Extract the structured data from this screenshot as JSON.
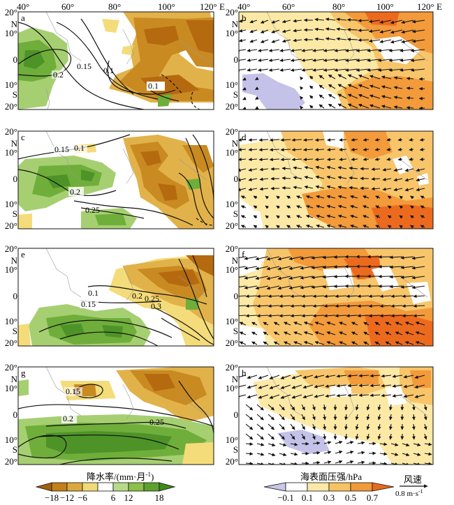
{
  "top_axis": {
    "lon_labels_left": [
      "40°",
      "60°",
      "80°",
      "100°",
      "120° E"
    ],
    "lon_labels_right": [
      "40°",
      "60°",
      "80°",
      "100°",
      "120° E"
    ]
  },
  "lat_labels": {
    "top": "20°",
    "n10": "10°",
    "N": "N",
    "zero": "0",
    "s10": "10°",
    "S": "S",
    "bottom": "20°"
  },
  "panels": [
    {
      "id": "a",
      "contours": [
        {
          "text": "0.2"
        },
        {
          "text": "0.15"
        },
        {
          "text": "0.1"
        },
        {
          "text": "0.1"
        }
      ]
    },
    {
      "id": "b"
    },
    {
      "id": "c",
      "contours": [
        {
          "text": "0.15"
        },
        {
          "text": "0.1"
        },
        {
          "text": "0.2"
        },
        {
          "text": "0.25"
        }
      ]
    },
    {
      "id": "d"
    },
    {
      "id": "e",
      "contours": [
        {
          "text": "0.1"
        },
        {
          "text": "0.15"
        },
        {
          "text": "0.2"
        },
        {
          "text": "0.25"
        },
        {
          "text": "0.3"
        }
      ]
    },
    {
      "id": "f"
    },
    {
      "id": "g",
      "contours": [
        {
          "text": "0.15"
        },
        {
          "text": "0.2"
        },
        {
          "text": "0.25"
        }
      ]
    },
    {
      "id": "h"
    }
  ],
  "legend_left": {
    "title": "降水率/(mm·月",
    "title_sup": "-1",
    "title_close": ")",
    "ticks": [
      "−18",
      "−12",
      "−6",
      "6",
      "12",
      "18"
    ],
    "colors": [
      "#a0620e",
      "#c47f1a",
      "#dca83e",
      "#f0d978",
      "#ffffff",
      "#b9d98a",
      "#8cc04a",
      "#5ea12e",
      "#3d8a1e"
    ]
  },
  "legend_right": {
    "title": "海表面压强/hPa",
    "ticks": [
      "−0.1",
      "0.1",
      "0.3",
      "0.5",
      "0.7"
    ],
    "colors": [
      "#c9c6ea",
      "#ffffff",
      "#fbe9a8",
      "#f6c263",
      "#f09a3a",
      "#ea6a1c"
    ]
  },
  "wind_legend": {
    "title": "风速",
    "value": "0.8 m·s",
    "value_sup": "-1"
  },
  "colors": {
    "brown_dark": "#b56a10",
    "brown": "#c98a22",
    "tan": "#e2b24a",
    "yellow": "#f4dc7a",
    "green_light": "#a6cf72",
    "green": "#6fae3a",
    "green_dark": "#4e9328",
    "lav": "#c4c2e8",
    "p_yellow": "#fde9a6",
    "p_lorange": "#f8c56a",
    "p_orange": "#f39a3a",
    "p_red": "#ec6a1e"
  }
}
